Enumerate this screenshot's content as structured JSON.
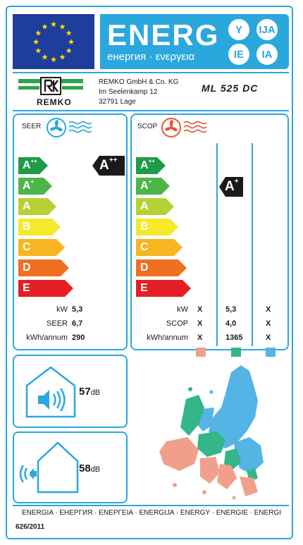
{
  "header": {
    "energy_word": "ENERG",
    "energy_sub": "енергия · ενεργεια",
    "bubbles": [
      "Y",
      "IJA",
      "IE",
      "IA"
    ],
    "eu_blue": "#1f3d9a",
    "accent": "#2aa7dd"
  },
  "supplier": {
    "logo_text": "REMKO",
    "name": "REMKO GmbH & Co. KG",
    "street": "Im Seelenkamp 12",
    "city": "32791 Lage",
    "model": "ML 525 DC"
  },
  "seer_panel": {
    "title": "SEER",
    "rated_class": {
      "letter": "A",
      "sup": "++"
    },
    "rows": [
      {
        "label": "kW",
        "value": "5,3"
      },
      {
        "label": "SEER",
        "value": "6,7"
      },
      {
        "label": "kWh/annum",
        "value": "290"
      }
    ]
  },
  "scop_panel": {
    "title": "SCOP",
    "rated_class": {
      "letter": "A",
      "sup": "+"
    },
    "rows": [
      {
        "label": "kW",
        "values": [
          "X",
          "5,3",
          "X"
        ]
      },
      {
        "label": "SCOP",
        "values": [
          "X",
          "4,0",
          "X"
        ]
      },
      {
        "label": "kWh/annum",
        "values": [
          "X",
          "1365",
          "X"
        ]
      }
    ],
    "zone_colors": [
      "#f0a08a",
      "#34b58a",
      "#55b4e6"
    ]
  },
  "energy_classes": [
    {
      "letter": "A",
      "sup": "++",
      "color": "#1f9a46"
    },
    {
      "letter": "A",
      "sup": "+",
      "color": "#4db547"
    },
    {
      "letter": "A",
      "sup": "",
      "color": "#b6d134"
    },
    {
      "letter": "B",
      "sup": "",
      "color": "#f6e82a"
    },
    {
      "letter": "C",
      "sup": "",
      "color": "#f7b521"
    },
    {
      "letter": "D",
      "sup": "",
      "color": "#ef7020"
    },
    {
      "letter": "E",
      "sup": "",
      "color": "#e51f26"
    }
  ],
  "noise": {
    "indoor": {
      "value": "57",
      "unit": "dB"
    },
    "outdoor": {
      "value": "58",
      "unit": "dB"
    }
  },
  "footer": {
    "languages": "ENERGIA · ЕНЕРГИЯ · ΕΝΕΡΓΕΙΑ · ENERGIJA · ENERGY · ENERGIE · ENERGI",
    "regulation": "626/2011"
  }
}
